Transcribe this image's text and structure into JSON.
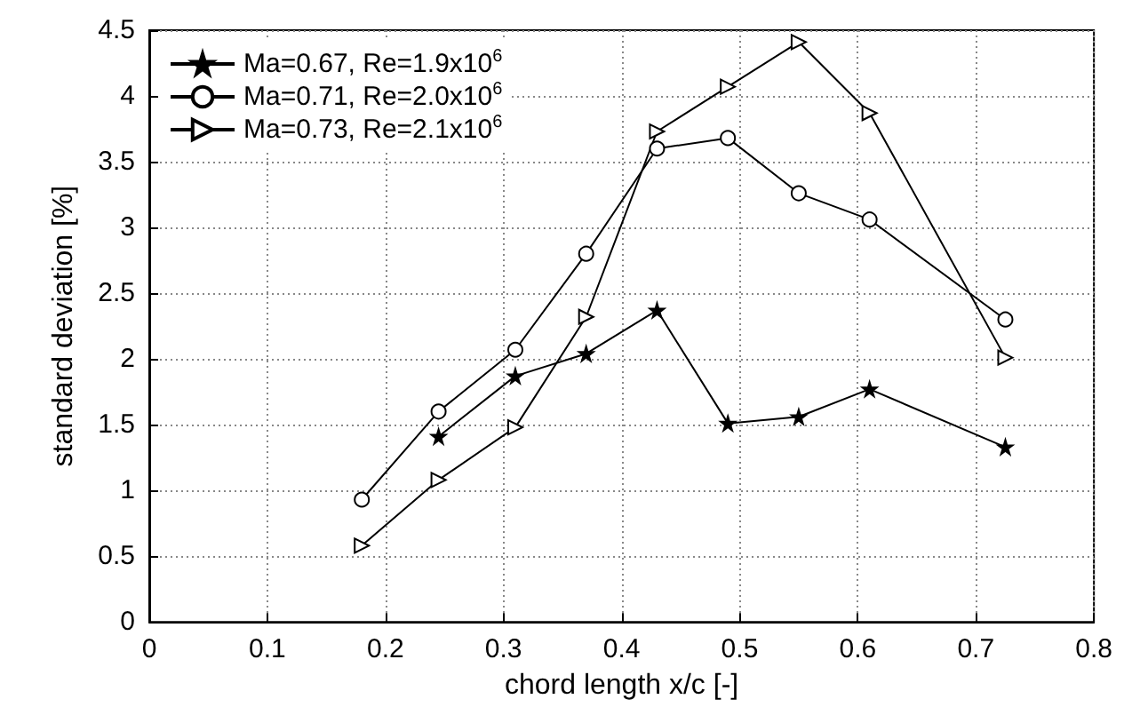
{
  "chart_data": {
    "type": "line",
    "xlabel": "chord length x/c [-]",
    "ylabel": "standard deviation [%]",
    "xlim": [
      0,
      0.8
    ],
    "xticks": [
      0,
      0.1,
      0.2,
      0.3,
      0.4,
      0.5,
      0.6,
      0.7,
      0.8
    ],
    "ylim": [
      0,
      4.5
    ],
    "yticks": [
      0,
      0.5,
      1,
      1.5,
      2,
      2.5,
      3,
      3.5,
      4,
      4.5
    ],
    "grid": true,
    "legend": "top left",
    "line_style": "solid",
    "series": [
      {
        "name": "Ma=0.67, Re=1.9x10$^{6}$",
        "color": "#000000",
        "marker": "star",
        "x": [
          0.245,
          0.31,
          0.37,
          0.43,
          0.49,
          0.55,
          0.61,
          0.725
        ],
        "values": [
          1.41,
          1.87,
          2.04,
          2.37,
          1.51,
          1.56,
          1.77,
          1.33
        ]
      },
      {
        "name": "Ma=0.71, Re=2.0x10$^{6}$",
        "color": "#000000",
        "marker": "circle",
        "x": [
          0.18,
          0.245,
          0.31,
          0.37,
          0.43,
          0.49,
          0.55,
          0.61,
          0.725
        ],
        "values": [
          0.93,
          1.6,
          2.07,
          2.8,
          3.6,
          3.68,
          3.26,
          3.06,
          2.3
        ]
      },
      {
        "name": "Ma=0.73, Re=2.1x10$^{6}$",
        "color": "#000000",
        "marker": "triangle",
        "x": [
          0.18,
          0.245,
          0.31,
          0.37,
          0.43,
          0.49,
          0.55,
          0.61,
          0.725
        ],
        "values": [
          0.58,
          1.08,
          1.48,
          2.32,
          3.73,
          4.07,
          4.41,
          3.87,
          2.01
        ]
      }
    ]
  }
}
